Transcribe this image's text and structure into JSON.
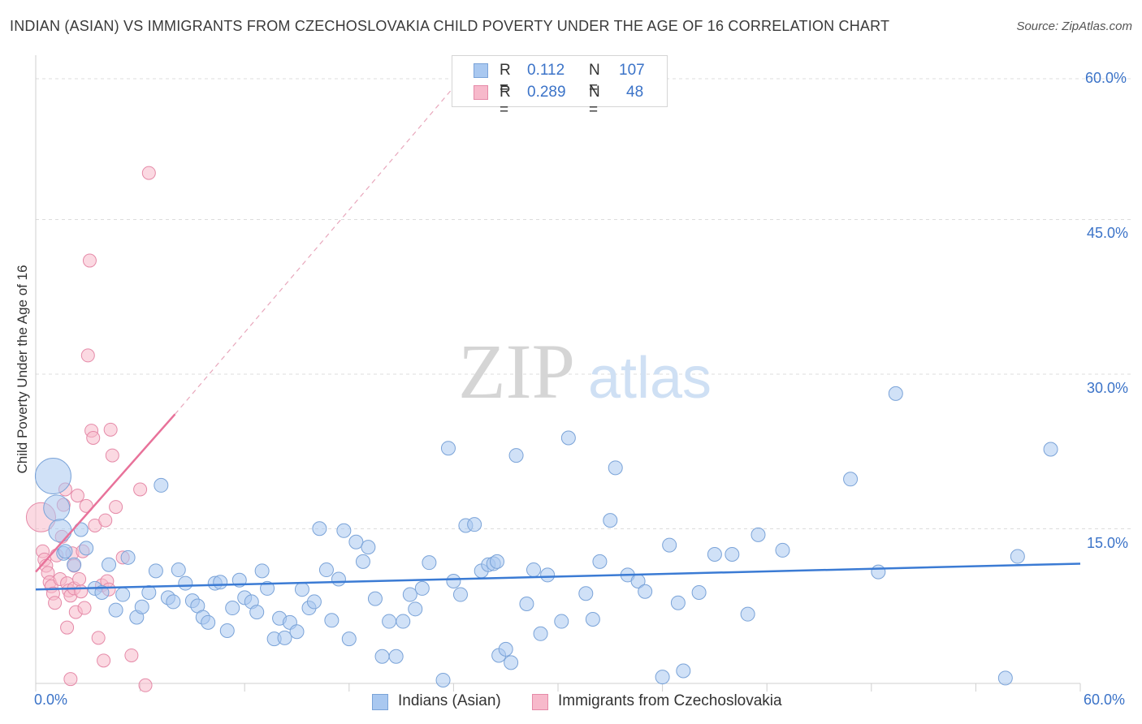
{
  "header": {
    "title": "INDIAN (ASIAN) VS IMMIGRANTS FROM CZECHOSLOVAKIA CHILD POVERTY UNDER THE AGE OF 16 CORRELATION CHART",
    "source": "Source: ZipAtlas.com"
  },
  "watermark": {
    "zip": "ZIP",
    "atlas": "atlas"
  },
  "legend": {
    "rows": [
      {
        "r_label": "R =",
        "r_value": "0.112",
        "n_label": "N =",
        "n_value": "107",
        "color": "#a9c8f0"
      },
      {
        "r_label": "R =",
        "r_value": "0.289",
        "n_label": "N =",
        "n_value": "48",
        "color": "#f7b9cb"
      }
    ]
  },
  "bottom_legend": {
    "items": [
      {
        "label": "Indians (Asian)",
        "color": "#a9c8f0"
      },
      {
        "label": "Immigrants from Czechoslovakia",
        "color": "#f7b9cb"
      }
    ]
  },
  "chart_data": {
    "type": "scatter",
    "title": "INDIAN (ASIAN) VS IMMIGRANTS FROM CZECHOSLOVAKIA CHILD POVERTY UNDER THE AGE OF 16 CORRELATION CHART",
    "xlabel": "",
    "ylabel": "Child Poverty Under the Age of 16",
    "xlim": [
      0,
      60
    ],
    "ylim": [
      0,
      60
    ],
    "x_tick_labels": [
      "0.0%",
      "60.0%"
    ],
    "y_tick_labels": [
      "15.0%",
      "30.0%",
      "45.0%",
      "60.0%"
    ],
    "y_ticks": [
      15,
      30,
      45,
      60
    ],
    "grid": true,
    "legend_position": "top-center",
    "colors": {
      "blue": "#3b7bd4",
      "pink": "#e8729a",
      "blue_fill": "#a9c8f0",
      "pink_fill": "#f7b9cb"
    },
    "series": [
      {
        "name": "Indians (Asian)",
        "color": "#3b7bd4",
        "fill": "#a9c8f0",
        "trend": {
          "x": [
            0,
            60
          ],
          "y": [
            10.3,
            12.8
          ]
        },
        "points": [
          [
            1.0,
            21.3
          ],
          [
            1.2,
            18.2
          ],
          [
            1.4,
            16.0
          ],
          [
            1.6,
            13.8
          ],
          [
            1.7,
            14.0
          ],
          [
            2.2,
            12.7
          ],
          [
            2.6,
            16.1
          ],
          [
            2.9,
            14.3
          ],
          [
            3.4,
            10.4
          ],
          [
            3.8,
            10.0
          ],
          [
            4.2,
            12.7
          ],
          [
            4.6,
            8.3
          ],
          [
            5.0,
            9.8
          ],
          [
            5.3,
            13.4
          ],
          [
            5.8,
            7.6
          ],
          [
            6.1,
            8.6
          ],
          [
            6.5,
            10.0
          ],
          [
            6.9,
            12.1
          ],
          [
            7.2,
            20.4
          ],
          [
            7.6,
            9.5
          ],
          [
            7.9,
            9.1
          ],
          [
            8.2,
            12.2
          ],
          [
            8.6,
            10.9
          ],
          [
            9.0,
            9.2
          ],
          [
            9.3,
            8.7
          ],
          [
            9.6,
            7.6
          ],
          [
            9.9,
            7.1
          ],
          [
            10.3,
            10.9
          ],
          [
            10.6,
            11.0
          ],
          [
            11.0,
            6.3
          ],
          [
            11.3,
            8.5
          ],
          [
            11.7,
            11.2
          ],
          [
            12.0,
            9.5
          ],
          [
            12.4,
            9.1
          ],
          [
            12.7,
            8.1
          ],
          [
            13.0,
            12.1
          ],
          [
            13.3,
            10.4
          ],
          [
            13.7,
            5.5
          ],
          [
            14.0,
            7.5
          ],
          [
            14.3,
            5.6
          ],
          [
            14.6,
            7.1
          ],
          [
            15.0,
            6.2
          ],
          [
            15.3,
            10.3
          ],
          [
            15.7,
            8.5
          ],
          [
            16.0,
            9.1
          ],
          [
            16.3,
            16.2
          ],
          [
            16.7,
            12.2
          ],
          [
            17.0,
            7.3
          ],
          [
            17.4,
            11.3
          ],
          [
            17.7,
            16.0
          ],
          [
            18.0,
            5.5
          ],
          [
            18.4,
            14.9
          ],
          [
            18.8,
            13.0
          ],
          [
            19.1,
            14.4
          ],
          [
            19.5,
            9.4
          ],
          [
            19.9,
            3.8
          ],
          [
            20.3,
            7.2
          ],
          [
            20.7,
            3.8
          ],
          [
            21.1,
            7.2
          ],
          [
            21.5,
            9.8
          ],
          [
            21.8,
            8.4
          ],
          [
            22.2,
            10.4
          ],
          [
            22.6,
            12.9
          ],
          [
            23.4,
            1.5
          ],
          [
            23.7,
            24.0
          ],
          [
            24.0,
            11.1
          ],
          [
            24.4,
            9.8
          ],
          [
            24.7,
            16.5
          ],
          [
            25.2,
            16.6
          ],
          [
            25.6,
            12.1
          ],
          [
            26.0,
            12.7
          ],
          [
            26.3,
            12.8
          ],
          [
            26.6,
            3.9
          ],
          [
            27.0,
            4.5
          ],
          [
            27.3,
            3.2
          ],
          [
            27.6,
            23.3
          ],
          [
            28.2,
            8.9
          ],
          [
            28.6,
            12.2
          ],
          [
            29.0,
            6.0
          ],
          [
            29.4,
            11.7
          ],
          [
            30.2,
            7.2
          ],
          [
            30.6,
            25.0
          ],
          [
            31.6,
            9.9
          ],
          [
            32.0,
            7.4
          ],
          [
            32.4,
            13.0
          ],
          [
            33.0,
            17.0
          ],
          [
            33.3,
            22.1
          ],
          [
            34.0,
            11.7
          ],
          [
            34.6,
            11.1
          ],
          [
            35.0,
            10.1
          ],
          [
            36.0,
            1.8
          ],
          [
            36.4,
            14.6
          ],
          [
            36.9,
            9.0
          ],
          [
            37.2,
            2.4
          ],
          [
            38.1,
            10.0
          ],
          [
            40.0,
            13.7
          ],
          [
            40.9,
            7.9
          ],
          [
            41.5,
            15.6
          ],
          [
            42.9,
            14.1
          ],
          [
            46.8,
            21.0
          ],
          [
            48.4,
            12.0
          ],
          [
            49.4,
            29.3
          ],
          [
            55.7,
            1.7
          ],
          [
            56.4,
            13.5
          ],
          [
            58.3,
            23.9
          ],
          [
            39.0,
            13.7
          ],
          [
            26.5,
            13.0
          ]
        ],
        "sizes": {
          "0": 22,
          "1": 16,
          "2": 14
        }
      },
      {
        "name": "Immigrants from Czechoslovakia",
        "color": "#e8729a",
        "fill": "#f7b9cb",
        "trend": {
          "x": [
            0,
            8
          ],
          "y": [
            12.0,
            27.3
          ]
        },
        "trend_dash": {
          "x": [
            8,
            24.5
          ],
          "y": [
            27.3,
            60
          ]
        },
        "points": [
          [
            0.3,
            17.3
          ],
          [
            0.4,
            14.0
          ],
          [
            0.5,
            13.2
          ],
          [
            0.6,
            12.6
          ],
          [
            0.7,
            11.9
          ],
          [
            0.8,
            11.0
          ],
          [
            0.9,
            10.6
          ],
          [
            1.0,
            9.9
          ],
          [
            1.1,
            9.0
          ],
          [
            1.2,
            13.6
          ],
          [
            1.4,
            11.3
          ],
          [
            1.5,
            15.4
          ],
          [
            1.6,
            18.5
          ],
          [
            1.7,
            20.0
          ],
          [
            1.8,
            10.9
          ],
          [
            1.9,
            10.2
          ],
          [
            2.0,
            9.7
          ],
          [
            2.1,
            13.8
          ],
          [
            2.2,
            10.4
          ],
          [
            2.3,
            8.1
          ],
          [
            2.4,
            19.4
          ],
          [
            2.5,
            11.3
          ],
          [
            2.6,
            10.1
          ],
          [
            2.7,
            14.0
          ],
          [
            2.8,
            8.5
          ],
          [
            2.9,
            18.4
          ],
          [
            3.0,
            33.0
          ],
          [
            3.1,
            42.2
          ],
          [
            3.2,
            25.7
          ],
          [
            3.3,
            25.0
          ],
          [
            3.4,
            16.5
          ],
          [
            3.6,
            5.6
          ],
          [
            3.8,
            10.7
          ],
          [
            3.9,
            3.4
          ],
          [
            4.0,
            17.0
          ],
          [
            4.1,
            11.1
          ],
          [
            4.2,
            10.3
          ],
          [
            4.3,
            25.8
          ],
          [
            4.4,
            23.3
          ],
          [
            4.6,
            18.3
          ],
          [
            1.8,
            6.6
          ],
          [
            2.0,
            1.6
          ],
          [
            5.0,
            13.4
          ],
          [
            5.5,
            3.9
          ],
          [
            6.0,
            20.0
          ],
          [
            6.3,
            1.0
          ],
          [
            6.5,
            50.7
          ],
          [
            2.2,
            12.6
          ]
        ],
        "sizes": {
          "0": 18
        }
      }
    ]
  }
}
